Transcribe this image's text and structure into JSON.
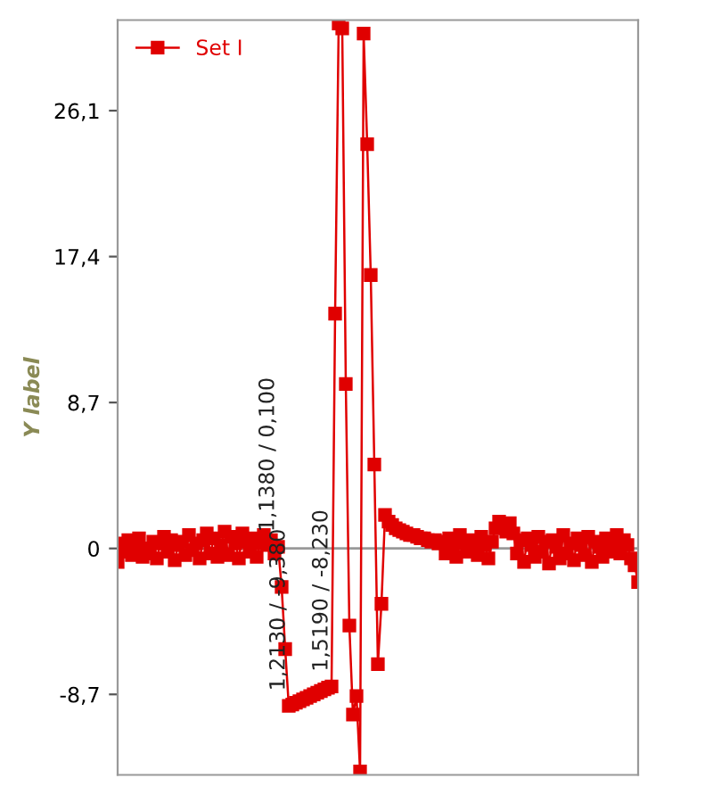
{
  "chart_data": {
    "type": "line",
    "ylabel": "Y label",
    "legend": "top left",
    "marker": "square",
    "line_style": "solid",
    "grid": false,
    "categories": [
      null,
      null,
      null,
      null,
      null,
      null,
      null,
      null,
      null,
      null,
      null,
      null,
      null,
      null,
      null,
      null,
      null,
      null,
      null,
      null,
      null,
      null,
      null,
      null,
      null,
      null,
      null,
      null,
      null,
      null,
      null,
      null,
      null,
      null,
      null,
      null,
      null,
      null,
      null,
      null,
      null,
      null,
      null,
      null,
      null,
      null,
      null,
      null,
      null,
      null,
      null,
      null,
      null,
      null,
      null,
      null,
      null,
      null,
      null,
      null,
      null,
      null,
      null,
      null,
      null,
      null,
      null,
      null,
      null,
      null,
      null,
      null,
      null,
      null,
      null,
      null,
      null,
      null,
      null,
      null,
      null,
      null,
      null,
      null,
      null,
      null,
      null,
      null,
      null,
      null,
      null,
      null,
      null,
      null,
      null,
      null,
      null,
      null,
      null,
      null,
      null,
      null,
      null,
      null,
      null,
      null,
      null,
      null,
      null,
      null,
      null,
      null,
      null,
      null,
      null,
      null,
      null,
      null,
      null,
      null,
      null,
      null,
      null,
      null,
      null,
      null,
      null,
      null,
      null,
      null,
      null,
      null,
      null,
      null,
      null,
      null,
      null,
      null,
      null,
      null,
      null,
      null,
      null,
      null,
      null,
      null,
      null
    ],
    "ylim": [
      -13.5,
      31.5
    ],
    "yticks": [
      {
        "value": -8.7,
        "label": "-8,7"
      },
      0,
      {
        "value": 8.7,
        "label": "8,7"
      },
      {
        "value": 17.4,
        "label": "17,4"
      },
      {
        "value": 26.1,
        "label": "26,1"
      }
    ],
    "ref_lines": [
      {
        "axis": "y",
        "value": 0,
        "color": "#999999"
      }
    ],
    "annotations": [
      {
        "text": "1,1380 / 0,100",
        "y": 0.1
      },
      {
        "text": "1,2130 / -9,380",
        "y": -9.38
      },
      {
        "text": "1,5190 / -8,230",
        "y": -8.23
      }
    ],
    "series": [
      {
        "name": "Set I",
        "color": "#e00000",
        "values": [
          -0.8,
          0.3,
          -0.2,
          0.5,
          -0.4,
          0.2,
          0.6,
          -0.5,
          0.0,
          -0.3,
          0.4,
          -0.6,
          0.3,
          0.7,
          -0.2,
          0.5,
          -0.7,
          0.2,
          0.4,
          -0.4,
          0.8,
          -0.1,
          0.3,
          -0.6,
          0.5,
          0.9,
          -0.3,
          0.6,
          -0.5,
          0.2,
          1.0,
          -0.4,
          0.7,
          0.3,
          -0.6,
          0.9,
          0.4,
          -0.2,
          0.6,
          -0.5,
          0.3,
          0.8,
          0.2,
          0.5,
          -0.3,
          0.1,
          -2.3,
          -6.0,
          -9.38,
          -9.3,
          -9.2,
          -9.1,
          -9.0,
          -8.9,
          -8.8,
          -8.7,
          -8.6,
          -8.5,
          -8.4,
          -8.3,
          -8.23,
          14.0,
          31.3,
          31.0,
          9.8,
          -4.6,
          -9.9,
          -8.8,
          -13.3,
          30.7,
          24.1,
          16.3,
          5.0,
          -6.9,
          -3.3,
          2.0,
          1.6,
          1.4,
          1.2,
          1.1,
          1.0,
          0.9,
          0.8,
          0.8,
          0.7,
          0.6,
          0.6,
          0.5,
          0.4,
          0.5,
          0.3,
          0.4,
          -0.3,
          0.6,
          0.2,
          -0.5,
          0.8,
          0.3,
          -0.2,
          0.5,
          0.1,
          -0.4,
          0.7,
          0.2,
          -0.6,
          0.4,
          1.2,
          1.6,
          1.4,
          1.0,
          1.5,
          0.9,
          -0.3,
          0.5,
          -0.8,
          0.6,
          0.2,
          -0.5,
          0.7,
          -0.2,
          0.4,
          -0.9,
          0.5,
          0.1,
          -0.6,
          0.8,
          -0.3,
          0.3,
          -0.7,
          0.6,
          0.2,
          -0.4,
          0.7,
          -0.8,
          0.4,
          0.1,
          -0.5,
          0.6,
          -0.2,
          0.3,
          0.8,
          -0.3,
          0.5,
          0.2,
          -0.6,
          -1.0,
          -2.0
        ]
      }
    ]
  }
}
